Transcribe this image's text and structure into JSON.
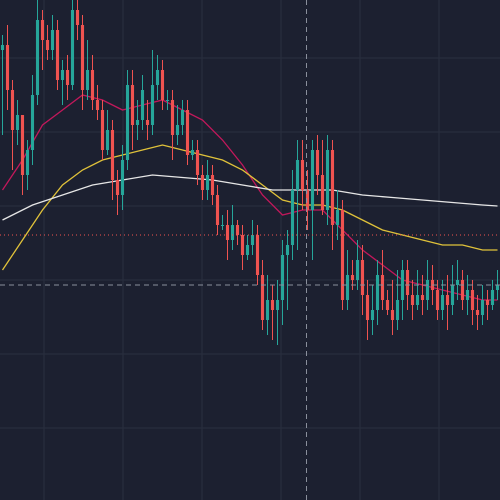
{
  "colors": {
    "background": "#1c2030",
    "grid": "#2a2f3f",
    "up": "#26a69a",
    "down": "#ef5350",
    "ma_fast": "#c2185b",
    "ma_mid": "#e0c23a",
    "ma_slow": "#e6e6e6",
    "crosshair": "#8a8f9c",
    "price_line": "#ef5350"
  },
  "chart_data": {
    "type": "candlestick",
    "x_range": [
      0,
      100
    ],
    "ylim": [
      0,
      100
    ],
    "grid": true,
    "legend": "none",
    "crosshair": {
      "x": 60.8,
      "y": 43
    },
    "price_line": {
      "y": 53
    },
    "candles": [
      [
        0,
        90,
        91,
        93,
        73
      ],
      [
        1,
        91,
        82,
        95,
        78
      ],
      [
        2,
        82,
        74,
        84,
        66
      ],
      [
        3,
        74,
        77,
        80,
        71
      ],
      [
        4,
        77,
        65,
        77,
        61
      ],
      [
        5,
        65,
        70,
        72,
        62
      ],
      [
        6,
        70,
        81,
        85,
        67
      ],
      [
        7,
        81,
        96,
        100,
        79
      ],
      [
        8,
        96,
        92,
        98,
        86
      ],
      [
        9,
        92,
        90,
        95,
        88
      ],
      [
        10,
        90,
        94,
        97,
        88
      ],
      [
        11,
        94,
        84,
        96,
        82
      ],
      [
        12,
        84,
        86,
        88,
        79
      ],
      [
        13,
        86,
        83,
        89,
        80
      ],
      [
        14,
        83,
        98,
        100,
        82
      ],
      [
        15,
        98,
        95,
        100,
        92
      ],
      [
        16,
        95,
        82,
        97,
        78
      ],
      [
        17,
        82,
        86,
        92,
        80
      ],
      [
        18,
        86,
        80,
        89,
        78
      ],
      [
        19,
        80,
        78,
        83,
        76
      ],
      [
        20,
        78,
        70,
        80,
        68
      ],
      [
        21,
        70,
        74,
        78,
        69
      ],
      [
        22,
        74,
        64,
        76,
        60
      ],
      [
        23,
        64,
        61,
        66,
        57
      ],
      [
        24,
        61,
        68,
        71,
        58
      ],
      [
        25,
        68,
        83,
        86,
        66
      ],
      [
        26,
        83,
        75,
        86,
        70
      ],
      [
        27,
        75,
        76,
        80,
        72
      ],
      [
        28,
        76,
        82,
        85,
        74
      ],
      [
        29,
        76,
        75,
        80,
        72
      ],
      [
        30,
        75,
        83,
        90,
        73
      ],
      [
        31,
        83,
        86,
        89,
        80
      ],
      [
        32,
        86,
        80,
        88,
        78
      ],
      [
        33,
        80,
        80,
        82,
        78
      ],
      [
        34,
        80,
        73,
        82,
        68
      ],
      [
        35,
        73,
        75,
        79,
        71
      ],
      [
        36,
        75,
        78,
        80,
        73
      ],
      [
        37,
        78,
        69,
        80,
        67
      ],
      [
        38,
        69,
        70,
        72,
        68
      ],
      [
        39,
        70,
        65,
        72,
        63
      ],
      [
        40,
        65,
        62,
        67,
        60
      ],
      [
        41,
        62,
        65,
        68,
        60
      ],
      [
        42,
        65,
        61,
        67,
        59
      ],
      [
        43,
        61,
        55,
        63,
        53
      ],
      [
        44,
        55,
        55,
        57,
        54
      ],
      [
        45,
        55,
        52,
        58,
        48
      ],
      [
        46,
        52,
        55,
        59,
        50
      ],
      [
        47,
        55,
        53,
        56,
        51
      ],
      [
        48,
        53,
        49,
        55,
        46
      ],
      [
        49,
        49,
        51,
        53,
        48
      ],
      [
        50,
        51,
        53,
        56,
        49
      ],
      [
        51,
        53,
        45,
        55,
        43
      ],
      [
        52,
        45,
        36,
        48,
        34
      ],
      [
        53,
        36,
        40,
        45,
        33
      ],
      [
        54,
        40,
        38,
        43,
        32
      ],
      [
        55,
        38,
        40,
        44,
        31
      ],
      [
        56,
        40,
        49,
        52,
        35
      ],
      [
        57,
        49,
        51,
        54,
        38
      ],
      [
        58,
        51,
        62,
        66,
        48
      ],
      [
        59,
        62,
        68,
        72,
        50
      ],
      [
        60,
        68,
        62,
        72,
        58
      ],
      [
        61,
        62,
        58,
        66,
        54
      ],
      [
        62,
        58,
        70,
        72,
        48
      ],
      [
        63,
        70,
        65,
        73,
        61
      ],
      [
        64,
        65,
        58,
        72,
        57
      ],
      [
        65,
        58,
        70,
        73,
        55
      ],
      [
        66,
        70,
        55,
        72,
        50
      ],
      [
        67,
        55,
        58,
        62,
        52
      ],
      [
        68,
        58,
        40,
        60,
        38
      ],
      [
        69,
        40,
        45,
        50,
        38
      ],
      [
        70,
        45,
        44,
        48,
        42
      ],
      [
        71,
        44,
        48,
        52,
        42
      ],
      [
        72,
        48,
        41,
        51,
        37
      ],
      [
        73,
        41,
        36,
        44,
        32
      ],
      [
        74,
        36,
        38,
        43,
        33
      ],
      [
        75,
        38,
        45,
        48,
        35
      ],
      [
        76,
        45,
        40,
        50,
        38
      ],
      [
        77,
        40,
        38,
        42,
        37
      ],
      [
        78,
        38,
        36,
        44,
        33
      ],
      [
        79,
        36,
        40,
        46,
        34
      ],
      [
        80,
        40,
        46,
        48,
        36
      ],
      [
        81,
        46,
        41,
        48,
        38
      ],
      [
        82,
        41,
        39,
        44,
        36
      ],
      [
        83,
        39,
        41,
        46,
        38
      ],
      [
        84,
        41,
        40,
        45,
        37
      ],
      [
        85,
        40,
        44,
        48,
        38
      ],
      [
        86,
        44,
        42,
        47,
        39
      ],
      [
        87,
        42,
        38,
        44,
        36
      ],
      [
        88,
        38,
        41,
        44,
        36
      ],
      [
        89,
        41,
        39,
        45,
        34
      ],
      [
        90,
        39,
        43,
        47,
        37
      ],
      [
        91,
        43,
        44,
        48,
        40
      ],
      [
        92,
        44,
        40,
        46,
        38
      ],
      [
        93,
        40,
        42,
        45,
        37
      ],
      [
        94,
        42,
        38,
        44,
        35
      ],
      [
        95,
        38,
        37,
        41,
        34
      ],
      [
        96,
        37,
        40,
        43,
        35
      ],
      [
        97,
        40,
        39,
        42,
        36
      ],
      [
        98,
        39,
        42,
        44,
        38
      ],
      [
        99,
        42,
        43,
        46,
        40
      ]
    ],
    "series": [
      {
        "key": "ma_fast",
        "type": "line",
        "points": [
          [
            0,
            62
          ],
          [
            4,
            68
          ],
          [
            8,
            75
          ],
          [
            12,
            78
          ],
          [
            16,
            81
          ],
          [
            20,
            80
          ],
          [
            24,
            78
          ],
          [
            28,
            79
          ],
          [
            32,
            80
          ],
          [
            36,
            78
          ],
          [
            40,
            76
          ],
          [
            44,
            72
          ],
          [
            48,
            67
          ],
          [
            52,
            61
          ],
          [
            56,
            57
          ],
          [
            60,
            58
          ],
          [
            64,
            58
          ],
          [
            68,
            54
          ],
          [
            72,
            50
          ],
          [
            76,
            47
          ],
          [
            80,
            44
          ],
          [
            84,
            43
          ],
          [
            88,
            42
          ],
          [
            92,
            41
          ],
          [
            96,
            40
          ],
          [
            99,
            40
          ]
        ]
      },
      {
        "key": "ma_mid",
        "type": "line",
        "points": [
          [
            0,
            46
          ],
          [
            4,
            52
          ],
          [
            8,
            58
          ],
          [
            12,
            63
          ],
          [
            16,
            66
          ],
          [
            20,
            68
          ],
          [
            24,
            69
          ],
          [
            28,
            70
          ],
          [
            32,
            71
          ],
          [
            36,
            70
          ],
          [
            40,
            69
          ],
          [
            44,
            68
          ],
          [
            48,
            66
          ],
          [
            52,
            63
          ],
          [
            56,
            60
          ],
          [
            60,
            59
          ],
          [
            64,
            59
          ],
          [
            68,
            58
          ],
          [
            72,
            56
          ],
          [
            76,
            54
          ],
          [
            80,
            53
          ],
          [
            84,
            52
          ],
          [
            88,
            51
          ],
          [
            92,
            51
          ],
          [
            96,
            50
          ],
          [
            99,
            50
          ]
        ]
      },
      {
        "key": "ma_slow",
        "type": "line",
        "points": [
          [
            0,
            56
          ],
          [
            6,
            59
          ],
          [
            12,
            61
          ],
          [
            18,
            63
          ],
          [
            24,
            64
          ],
          [
            30,
            65
          ],
          [
            36,
            64.5
          ],
          [
            42,
            64
          ],
          [
            48,
            63
          ],
          [
            54,
            62
          ],
          [
            60,
            62
          ],
          [
            66,
            62
          ],
          [
            72,
            61
          ],
          [
            78,
            60.5
          ],
          [
            84,
            60
          ],
          [
            90,
            59.5
          ],
          [
            96,
            59
          ],
          [
            99,
            58.8
          ]
        ]
      }
    ]
  }
}
